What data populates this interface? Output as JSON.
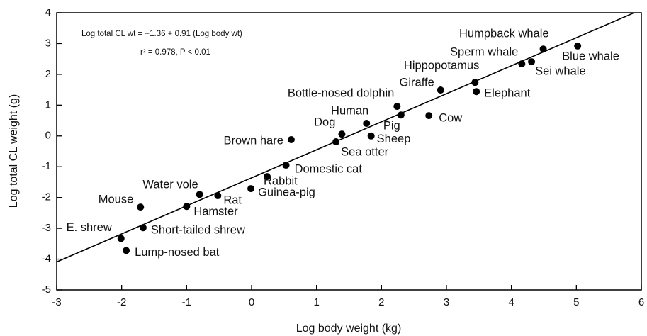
{
  "chart_data": {
    "type": "scatter",
    "x_label": "Log body weight (kg)",
    "y_label": "Log total CL weight (g)",
    "annotations": [
      "Log total CL wt = −1.36 + 0.91 (Log body wt)",
      "r² = 0.978, P < 0.01"
    ],
    "fit": {
      "intercept": -1.36,
      "slope": 0.91
    },
    "xlim": [
      -3,
      6
    ],
    "ylim": [
      -5,
      4
    ],
    "xticks": [
      -3,
      -2,
      -1,
      0,
      1,
      2,
      3,
      4,
      5,
      6
    ],
    "yticks": [
      -5,
      -4,
      -3,
      -2,
      -1,
      0,
      1,
      2,
      3,
      4
    ],
    "color": "#000000",
    "labels": [
      "Humpback whale",
      "Blue whale",
      "Sperm whale",
      "Sei whale",
      "Hippopotamus",
      "Elephant",
      "Giraffe",
      "Bottle-nosed dolphin",
      "Human",
      "Pig",
      "Cow",
      "Dog",
      "Sheep",
      "Sea otter",
      "Brown hare",
      "Domestic cat",
      "Rabbit",
      "Guinea-pig",
      "Rat",
      "Water vole",
      "Hamster",
      "Mouse",
      "Short-tailed shrew",
      "E. shrew",
      "Lump-nosed bat"
    ],
    "x": [
      4.49,
      5.02,
      4.16,
      4.31,
      3.44,
      3.46,
      2.91,
      2.24,
      1.77,
      2.3,
      2.73,
      1.39,
      1.84,
      1.3,
      0.61,
      0.53,
      0.24,
      -0.01,
      -0.52,
      -0.8,
      -1.0,
      -1.71,
      -1.67,
      -2.01,
      -1.93
    ],
    "values": [
      2.82,
      2.92,
      2.34,
      2.41,
      1.74,
      1.44,
      1.49,
      0.96,
      0.41,
      0.68,
      0.66,
      0.06,
      0.0,
      -0.19,
      -0.12,
      -0.95,
      -1.32,
      -1.71,
      -1.94,
      -1.9,
      -2.29,
      -2.31,
      -2.98,
      -3.33,
      -3.72
    ]
  }
}
